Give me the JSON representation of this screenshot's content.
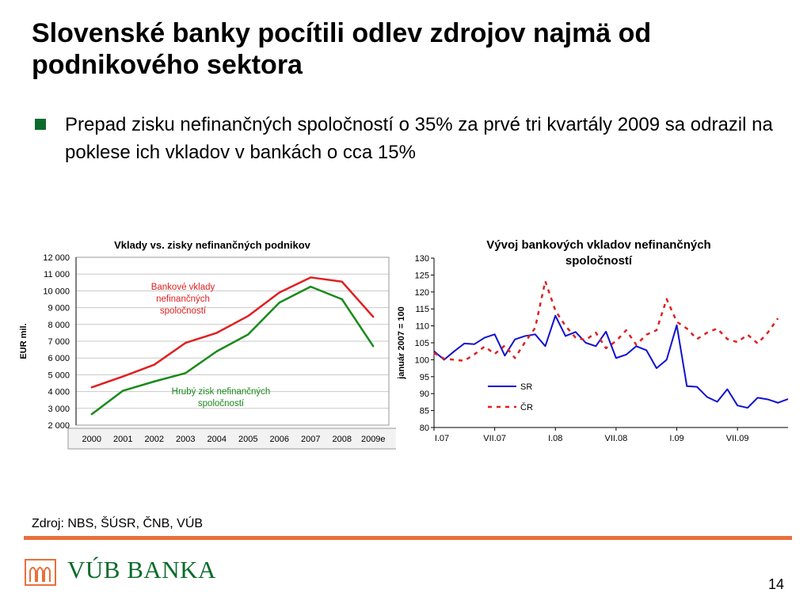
{
  "slide": {
    "title": "Slovenské banky pocítili odlev zdrojov najmä od podnikového sektora",
    "bullet": "Prepad zisku nefinančných spoločností o 35% za prvé tri kvartály 2009 sa odrazil na poklese ich vkladov v bankách o cca 15%",
    "source": "Zdroj: NBS, ŠÚSR, ČNB, VÚB",
    "logo": "VÚB BANKA",
    "page_number": "14",
    "accent_color": "#e8703a",
    "brand_color": "#0b6b2a"
  },
  "chart_data": [
    {
      "type": "line",
      "title": "Vklady vs. zisky nefinančných podnikov",
      "ylabel": "EUR mil.",
      "xlabel": "",
      "categories": [
        "2000",
        "2001",
        "2002",
        "2003",
        "2004",
        "2005",
        "2006",
        "2007",
        "2008",
        "2009e"
      ],
      "ylim": [
        2000,
        12000
      ],
      "yticks": [
        2000,
        3000,
        4000,
        5000,
        6000,
        7000,
        8000,
        9000,
        10000,
        11000,
        12000
      ],
      "ytick_labels": [
        "2 000",
        "3 000",
        "4 000",
        "5 000",
        "6 000",
        "7 000",
        "8 000",
        "9 000",
        "10 000",
        "11 000",
        "12 000"
      ],
      "grid": true,
      "series": [
        {
          "name": "Bankové vklady nefinančných spoločností",
          "color": "#e02020",
          "values": [
            4250,
            4900,
            5600,
            6900,
            7500,
            8500,
            9900,
            10800,
            10550,
            8450
          ]
        },
        {
          "name": "Hrubý zisk nefinančných spoločností",
          "color": "#1a8a1a",
          "values": [
            2650,
            4050,
            4600,
            5100,
            6400,
            7400,
            9300,
            10250,
            9500,
            6700
          ]
        }
      ]
    },
    {
      "type": "line",
      "title": "Vývoj bankových vkladov nefinančných spoločností",
      "ylabel": "január 2007 = 100",
      "xlabel": "",
      "ylim": [
        80,
        130
      ],
      "yticks": [
        80,
        85,
        90,
        95,
        100,
        105,
        110,
        115,
        120,
        125,
        130
      ],
      "x_tick_labels": [
        "I.07",
        "VII.07",
        "I.08",
        "VII.08",
        "I.09",
        "VII.09"
      ],
      "x_tick_index": [
        0,
        6,
        12,
        18,
        24,
        30
      ],
      "legend": "inside-lower-left",
      "grid": false,
      "series": [
        {
          "name": "SR",
          "color": "#1010d0",
          "style": "solid",
          "values": [
            102.5,
            100.0,
            102.5,
            104.8,
            104.6,
            106.5,
            107.5,
            101.2,
            106.0,
            107.0,
            107.5,
            104.0,
            113.0,
            107.0,
            108.2,
            105.0,
            104.0,
            108.3,
            100.5,
            101.5,
            104.0,
            102.8,
            97.5,
            100.0,
            110.2,
            92.2,
            92.0,
            89.0,
            87.6,
            91.3,
            86.5,
            85.8,
            88.8,
            88.3,
            87.3,
            88.4
          ]
        },
        {
          "name": "ČR",
          "color": "#e02020",
          "style": "dashed",
          "values": [
            102.0,
            100.3,
            100.0,
            99.7,
            101.6,
            103.9,
            101.7,
            104.2,
            100.5,
            105.2,
            109.4,
            123.2,
            114.5,
            110.0,
            106.5,
            105.8,
            108.0,
            103.4,
            105.5,
            108.7,
            104.4,
            107.4,
            108.7,
            117.9,
            111.2,
            109.2,
            106.1,
            108.0,
            109.2,
            106.1,
            105.2,
            107.4,
            104.8,
            108.0,
            112.2
          ]
        }
      ]
    }
  ]
}
